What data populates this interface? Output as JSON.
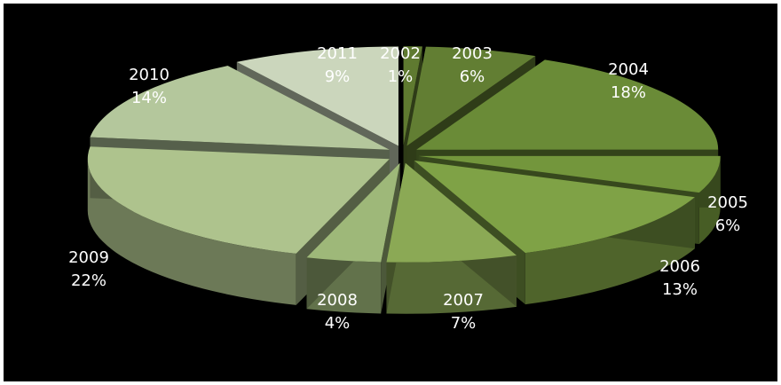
{
  "chart_data": {
    "type": "pie",
    "style": "3d-exploded",
    "categories": [
      "2002",
      "2003",
      "2004",
      "2005",
      "2006",
      "2007",
      "2008",
      "2009",
      "2010",
      "2011"
    ],
    "values": [
      1,
      6,
      18,
      6,
      13,
      7,
      4,
      22,
      14,
      9
    ],
    "value_labels": [
      "1%",
      "6%",
      "18%",
      "6%",
      "13%",
      "7%",
      "4%",
      "22%",
      "14%",
      "9%"
    ],
    "colors": [
      "#5f7a30",
      "#627e33",
      "#6a8b37",
      "#73963c",
      "#7fa246",
      "#8ba955",
      "#9eb879",
      "#aec38d",
      "#b4c79c",
      "#cbd6bc"
    ],
    "legend": "none",
    "background": "#000000"
  }
}
